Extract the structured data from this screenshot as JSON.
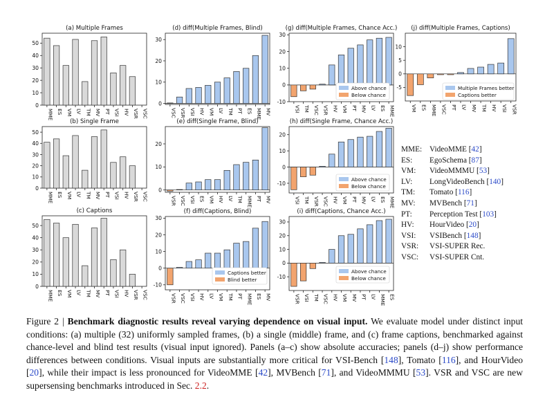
{
  "colors": {
    "gray": "#d9d9d9",
    "blue": "#a9c7ee",
    "orange": "#f2a46e",
    "edge": "#333333"
  },
  "chart_data": [
    {
      "id": "a",
      "type": "bar",
      "title": "(a) Multiple Frames",
      "categories": [
        "MME",
        "ES",
        "VM",
        "LV",
        "TM",
        "MV",
        "PT",
        "VSI",
        "HV",
        "VSR",
        "VSC"
      ],
      "values": [
        54,
        48,
        32,
        53,
        19,
        52,
        55,
        26,
        32,
        23,
        0
      ],
      "ylim": [
        0,
        58
      ],
      "yticks": [
        0,
        10,
        20,
        30,
        40,
        50
      ]
    },
    {
      "id": "b",
      "type": "bar",
      "title": "(b) Single Frame",
      "categories": [
        "MME",
        "ES",
        "VM",
        "LV",
        "TM",
        "MV",
        "PT",
        "VSI",
        "HV",
        "VSR",
        "VSC"
      ],
      "values": [
        41,
        44,
        29,
        47,
        16,
        46,
        52,
        23,
        28,
        20,
        0
      ],
      "ylim": [
        0,
        55
      ],
      "yticks": [
        0,
        10,
        20,
        30,
        40,
        50
      ]
    },
    {
      "id": "c",
      "type": "bar",
      "title": "(c) Captions",
      "categories": [
        "MME",
        "ES",
        "VM",
        "LV",
        "TM",
        "MV",
        "PT",
        "VSI",
        "HV",
        "VSR",
        "VSC"
      ],
      "values": [
        55,
        52,
        40,
        51,
        17,
        48,
        56,
        22,
        30,
        10,
        0
      ],
      "ylim": [
        0,
        58
      ],
      "yticks": [
        0,
        10,
        20,
        30,
        40,
        50
      ]
    },
    {
      "id": "d",
      "type": "bar",
      "title": "(d) diff(Multiple Frames, Blind)",
      "categories": [
        "VSC",
        "VSR",
        "VSI",
        "HV",
        "VM",
        "LV",
        "TM",
        "PT",
        "ES",
        "MME",
        "MV"
      ],
      "values": [
        0.2,
        3,
        7,
        7.5,
        8.5,
        10,
        12,
        15,
        16.5,
        22.5,
        32
      ],
      "ylim": [
        -0.5,
        33
      ],
      "yticks": [
        0,
        10,
        20,
        30
      ]
    },
    {
      "id": "e",
      "type": "bar",
      "title": "(e) diff(Single Frame, Blind)",
      "categories": [
        "VSR",
        "VSC",
        "VSI",
        "ES",
        "VM",
        "HV",
        "LV",
        "TM",
        "MME",
        "PT",
        "MV"
      ],
      "values": [
        -0.5,
        0.2,
        3,
        3.5,
        4.5,
        4.5,
        8.5,
        11,
        12,
        13,
        27
      ],
      "ylim": [
        -1,
        27.5
      ],
      "yticks": [
        0,
        10,
        20
      ]
    },
    {
      "id": "f",
      "type": "bar",
      "title": "(f) diff(Captions, Blind)",
      "categories": [
        "VSR",
        "VSC",
        "VSI",
        "HV",
        "LV",
        "VM",
        "TM",
        "PT",
        "MME",
        "ES",
        "MV"
      ],
      "values": [
        -10,
        0.5,
        4,
        5,
        9,
        9,
        11,
        15,
        16,
        24,
        28
      ],
      "ylim": [
        -13,
        31
      ],
      "yticks": [
        -10,
        0,
        10,
        20,
        30
      ],
      "legend": [
        {
          "label": "Captions better",
          "color": "blue"
        },
        {
          "label": "Blind better",
          "color": "orange"
        }
      ]
    },
    {
      "id": "g",
      "type": "bar",
      "title": "(g) diff(Multiple Frames, Chance Acc.)",
      "categories": [
        "VSI",
        "TM",
        "VSC",
        "VSR",
        "HV",
        "VM",
        "PT",
        "MV",
        "LV",
        "ES",
        "MME"
      ],
      "values": [
        -7,
        -3.5,
        -2.5,
        0.5,
        12,
        18,
        22,
        24,
        27,
        28,
        28.5
      ],
      "ylim": [
        -10,
        31
      ],
      "yticks": [
        -10,
        0,
        10,
        20,
        30
      ],
      "legend": [
        {
          "label": "Above chance",
          "color": "blue"
        },
        {
          "label": "Below chance",
          "color": "orange"
        }
      ]
    },
    {
      "id": "h",
      "type": "bar",
      "title": "(h) diff(Single Frame, Chance Acc.)",
      "categories": [
        "VSI",
        "TM",
        "VSR",
        "VSC",
        "HV",
        "VM",
        "PT",
        "MV",
        "LV",
        "ES",
        "MME"
      ],
      "values": [
        -14,
        -6,
        -5,
        0.5,
        8,
        15.5,
        17,
        18.5,
        19,
        22,
        24
      ],
      "ylim": [
        -16,
        25
      ],
      "yticks": [
        -10,
        0,
        10,
        20
      ],
      "legend": [
        {
          "label": "Above chance",
          "color": "blue"
        },
        {
          "label": "Below chance",
          "color": "orange"
        }
      ]
    },
    {
      "id": "i",
      "type": "bar",
      "title": "(i) diff(Captions, Chance Acc.)",
      "categories": [
        "VSR",
        "VSI",
        "TM",
        "VSC",
        "HV",
        "VM",
        "MV",
        "PT",
        "LV",
        "MME",
        "ES"
      ],
      "values": [
        -17,
        -13,
        -4,
        0.5,
        10,
        20,
        21,
        25,
        28,
        31,
        32
      ],
      "ylim": [
        -20,
        34
      ],
      "yticks": [
        -10,
        0,
        10,
        20,
        30
      ],
      "legend": [
        {
          "label": "Above chance",
          "color": "blue"
        },
        {
          "label": "Below chance",
          "color": "orange"
        }
      ]
    },
    {
      "id": "j",
      "type": "bar",
      "title": "(j) diff(Multiple Frames, Captions)",
      "categories": [
        "VM",
        "ES",
        "MME",
        "VSC",
        "PT",
        "LV",
        "MV",
        "TM",
        "HV",
        "VSI",
        "VSR"
      ],
      "values": [
        -8,
        -4,
        -1.5,
        -0.3,
        -0.3,
        0.5,
        2,
        2.5,
        3.5,
        4,
        13
      ],
      "ylim": [
        -10,
        15
      ],
      "yticks": [
        -5,
        0,
        5,
        10
      ],
      "legend": [
        {
          "label": "Multiple Frames better",
          "color": "blue"
        },
        {
          "label": "Captions better",
          "color": "orange"
        }
      ]
    }
  ],
  "legend_table": [
    {
      "abbr": "MME:",
      "name": "VideoMME [",
      "ref": "42",
      "close": "]"
    },
    {
      "abbr": "ES:",
      "name": "EgoSchema [",
      "ref": "87",
      "close": "]"
    },
    {
      "abbr": "VM:",
      "name": "VideoMMMU [",
      "ref": "53",
      "close": "]"
    },
    {
      "abbr": "LV:",
      "name": "LongVideoBench [",
      "ref": "140",
      "close": "]"
    },
    {
      "abbr": "TM:",
      "name": "Tomato [",
      "ref": "116",
      "close": "]"
    },
    {
      "abbr": "MV:",
      "name": "MVBench [",
      "ref": "71",
      "close": "]"
    },
    {
      "abbr": "PT:",
      "name": "Perception Test [",
      "ref": "103",
      "close": "]"
    },
    {
      "abbr": "HV:",
      "name": "HourVideo [",
      "ref": "20",
      "close": "]"
    },
    {
      "abbr": "VSI:",
      "name": "VSIBench [",
      "ref": "148",
      "close": "]"
    },
    {
      "abbr": "VSR:",
      "name": "VSI-SUPER Rec.",
      "ref": "",
      "close": ""
    },
    {
      "abbr": "VSC:",
      "name": "VSI-SUPER Cnt.",
      "ref": "",
      "close": ""
    }
  ],
  "caption": {
    "figure_label": "Figure 2 |",
    "title": "Benchmark diagnostic results reveal varying dependence on visual input.",
    "text1": "We evaluate model under distinct input conditions: (a) multiple (32) uniformly sampled frames, (b) a single (middle) frame, and (c) frame captions, benchmarked against chance-level and blind test results (visual input ignored). Panels (a–c) show absolute accuracies; panels (d–j) show performance differences between conditions. Visual inputs are substantially more critical for VSI-Bench [",
    "r1": "148",
    "text2": "], Tomato [",
    "r2": "116",
    "text3": "], and HourVideo [",
    "r3": "20",
    "text4": "], while their impact is less pronounced for VideoMME [",
    "r4": "42",
    "text5": "], MVBench [",
    "r5": "71",
    "text6": "], and VideoMMMU [",
    "r6": "53",
    "text7": "]. VSR and VSC are new supersensing benchmarks introduced in Sec. ",
    "sec": "2.2",
    "text8": "."
  }
}
